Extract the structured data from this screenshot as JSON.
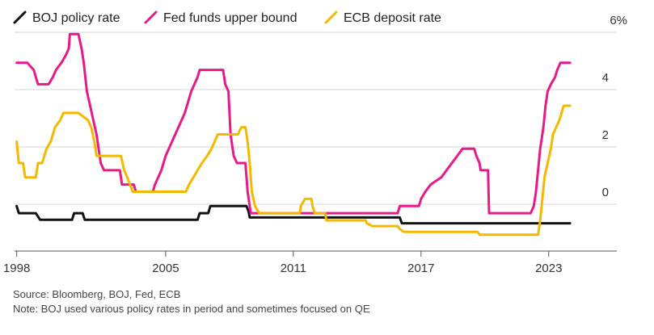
{
  "chart_data": {
    "type": "line",
    "title": "",
    "xlabel": "",
    "ylabel": "",
    "unit": "%",
    "xlim": [
      1997.9,
      2026.2
    ],
    "ylim": [
      -1,
      7
    ],
    "x_ticks": [
      {
        "value": 1998,
        "label": "1998"
      },
      {
        "value": 2005,
        "label": "2005"
      },
      {
        "value": 2011,
        "label": "2011"
      },
      {
        "value": 2017,
        "label": "2017"
      },
      {
        "value": 2023,
        "label": "2023"
      }
    ],
    "y_ticks": [
      {
        "value": 6,
        "label": "6%"
      },
      {
        "value": 4,
        "label": "4"
      },
      {
        "value": 2,
        "label": "2"
      },
      {
        "value": 0,
        "label": "0"
      }
    ],
    "grid": true,
    "legend_position": "top-left",
    "series": [
      {
        "name": "BOJ policy rate",
        "color": "#111111",
        "points": [
          [
            1998.0,
            0.5
          ],
          [
            1998.1,
            0.25
          ],
          [
            1998.9,
            0.25
          ],
          [
            1999.1,
            0.02
          ],
          [
            2000.6,
            0.02
          ],
          [
            2000.7,
            0.25
          ],
          [
            2001.1,
            0.25
          ],
          [
            2001.2,
            0.02
          ],
          [
            2006.5,
            0.02
          ],
          [
            2006.6,
            0.25
          ],
          [
            2007.0,
            0.25
          ],
          [
            2007.1,
            0.5
          ],
          [
            2008.8,
            0.5
          ],
          [
            2008.9,
            0.3
          ],
          [
            2008.95,
            0.1
          ],
          [
            2016.0,
            0.1
          ],
          [
            2016.1,
            -0.1
          ],
          [
            2024.0,
            -0.1
          ]
        ]
      },
      {
        "name": "Fed funds upper bound",
        "color": "#e8198b",
        "points": [
          [
            1998.0,
            5.5
          ],
          [
            1998.5,
            5.5
          ],
          [
            1998.8,
            5.25
          ],
          [
            1999.0,
            4.75
          ],
          [
            1999.5,
            4.75
          ],
          [
            1999.7,
            5.0
          ],
          [
            1999.85,
            5.25
          ],
          [
            2000.1,
            5.5
          ],
          [
            2000.3,
            5.75
          ],
          [
            2000.45,
            6.0
          ],
          [
            2000.5,
            6.5
          ],
          [
            2000.9,
            6.5
          ],
          [
            2001.05,
            6.0
          ],
          [
            2001.15,
            5.5
          ],
          [
            2001.3,
            4.5
          ],
          [
            2001.45,
            4.0
          ],
          [
            2001.6,
            3.5
          ],
          [
            2001.75,
            3.0
          ],
          [
            2001.85,
            2.5
          ],
          [
            2001.95,
            2.0
          ],
          [
            2002.1,
            1.75
          ],
          [
            2002.85,
            1.75
          ],
          [
            2002.95,
            1.25
          ],
          [
            2003.5,
            1.25
          ],
          [
            2003.6,
            1.0
          ],
          [
            2004.4,
            1.0
          ],
          [
            2004.5,
            1.25
          ],
          [
            2004.8,
            1.75
          ],
          [
            2005.0,
            2.25
          ],
          [
            2005.3,
            2.75
          ],
          [
            2005.6,
            3.25
          ],
          [
            2005.9,
            3.75
          ],
          [
            2006.2,
            4.5
          ],
          [
            2006.5,
            5.0
          ],
          [
            2006.6,
            5.25
          ],
          [
            2007.7,
            5.25
          ],
          [
            2007.8,
            4.75
          ],
          [
            2007.95,
            4.5
          ],
          [
            2008.05,
            3.0
          ],
          [
            2008.2,
            2.25
          ],
          [
            2008.35,
            2.0
          ],
          [
            2008.75,
            2.0
          ],
          [
            2008.85,
            1.0
          ],
          [
            2008.95,
            0.5
          ],
          [
            2009.0,
            0.25
          ],
          [
            2015.9,
            0.25
          ],
          [
            2016.0,
            0.5
          ],
          [
            2016.9,
            0.5
          ],
          [
            2017.0,
            0.75
          ],
          [
            2017.2,
            1.0
          ],
          [
            2017.45,
            1.25
          ],
          [
            2017.95,
            1.5
          ],
          [
            2018.2,
            1.75
          ],
          [
            2018.45,
            2.0
          ],
          [
            2018.7,
            2.25
          ],
          [
            2018.95,
            2.5
          ],
          [
            2019.5,
            2.5
          ],
          [
            2019.6,
            2.25
          ],
          [
            2019.75,
            2.0
          ],
          [
            2019.8,
            1.75
          ],
          [
            2020.15,
            1.75
          ],
          [
            2020.2,
            0.25
          ],
          [
            2022.15,
            0.25
          ],
          [
            2022.3,
            0.5
          ],
          [
            2022.4,
            1.0
          ],
          [
            2022.5,
            1.75
          ],
          [
            2022.6,
            2.5
          ],
          [
            2022.75,
            3.25
          ],
          [
            2022.85,
            4.0
          ],
          [
            2022.95,
            4.5
          ],
          [
            2023.1,
            4.75
          ],
          [
            2023.3,
            5.0
          ],
          [
            2023.4,
            5.25
          ],
          [
            2023.55,
            5.5
          ],
          [
            2024.0,
            5.5
          ]
        ]
      },
      {
        "name": "ECB deposit rate",
        "color": "#f5b800",
        "points": [
          [
            1998.0,
            2.75
          ],
          [
            1998.1,
            2.0
          ],
          [
            1998.3,
            2.0
          ],
          [
            1998.4,
            1.5
          ],
          [
            1998.9,
            1.5
          ],
          [
            1999.0,
            2.0
          ],
          [
            1999.2,
            2.0
          ],
          [
            1999.4,
            2.5
          ],
          [
            1999.6,
            2.75
          ],
          [
            1999.8,
            3.25
          ],
          [
            2000.05,
            3.5
          ],
          [
            2000.2,
            3.75
          ],
          [
            2000.9,
            3.75
          ],
          [
            2001.35,
            3.5
          ],
          [
            2001.5,
            3.25
          ],
          [
            2001.65,
            2.75
          ],
          [
            2001.75,
            2.25
          ],
          [
            2002.9,
            2.25
          ],
          [
            2003.05,
            1.75
          ],
          [
            2003.2,
            1.5
          ],
          [
            2003.45,
            1.0
          ],
          [
            2005.95,
            1.0
          ],
          [
            2006.1,
            1.25
          ],
          [
            2006.3,
            1.5
          ],
          [
            2006.5,
            1.75
          ],
          [
            2006.7,
            2.0
          ],
          [
            2006.95,
            2.25
          ],
          [
            2007.15,
            2.5
          ],
          [
            2007.45,
            3.0
          ],
          [
            2008.4,
            3.0
          ],
          [
            2008.55,
            3.25
          ],
          [
            2008.75,
            3.25
          ],
          [
            2008.85,
            2.75
          ],
          [
            2008.95,
            2.0
          ],
          [
            2009.05,
            1.0
          ],
          [
            2009.2,
            0.5
          ],
          [
            2009.4,
            0.25
          ],
          [
            2011.3,
            0.25
          ],
          [
            2011.35,
            0.5
          ],
          [
            2011.55,
            0.75
          ],
          [
            2011.85,
            0.75
          ],
          [
            2011.9,
            0.5
          ],
          [
            2012.0,
            0.25
          ],
          [
            2012.5,
            0.25
          ],
          [
            2012.55,
            0.0
          ],
          [
            2014.4,
            0.0
          ],
          [
            2014.45,
            -0.1
          ],
          [
            2014.7,
            -0.2
          ],
          [
            2015.9,
            -0.2
          ],
          [
            2016.0,
            -0.3
          ],
          [
            2016.2,
            -0.4
          ],
          [
            2019.65,
            -0.4
          ],
          [
            2019.75,
            -0.5
          ],
          [
            2022.5,
            -0.5
          ],
          [
            2022.6,
            0.0
          ],
          [
            2022.7,
            0.75
          ],
          [
            2022.8,
            1.5
          ],
          [
            2022.95,
            2.0
          ],
          [
            2023.1,
            2.5
          ],
          [
            2023.2,
            3.0
          ],
          [
            2023.35,
            3.25
          ],
          [
            2023.5,
            3.5
          ],
          [
            2023.6,
            3.75
          ],
          [
            2023.7,
            4.0
          ],
          [
            2024.0,
            4.0
          ]
        ]
      }
    ]
  },
  "footer": {
    "source": "Source: Bloomberg, BOJ, Fed, ECB",
    "note": "Note: BOJ used various policy rates in period and sometimes focused on QE"
  }
}
